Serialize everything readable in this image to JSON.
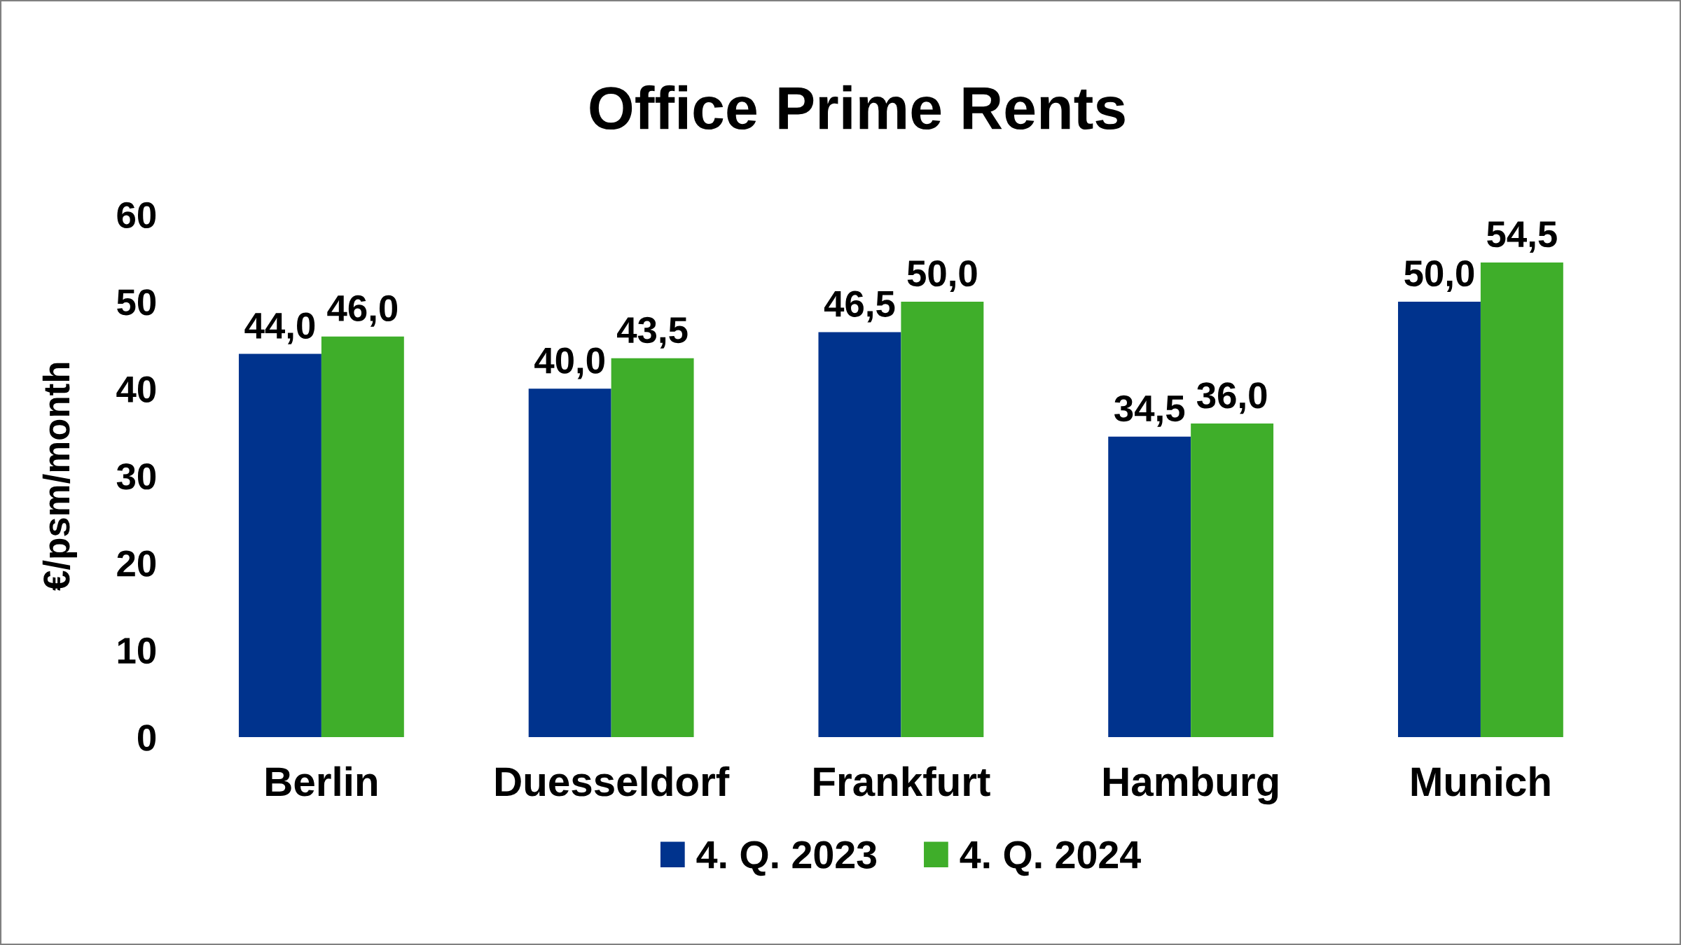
{
  "chart_data": {
    "type": "bar",
    "title": "Office Prime Rents",
    "ylabel": "€/psm/month",
    "categories": [
      "Berlin",
      "Duesseldorf",
      "Frankfurt",
      "Hamburg",
      "Munich"
    ],
    "series": [
      {
        "name": "4. Q. 2023",
        "color": "#00338d",
        "values": [
          44.0,
          40.0,
          46.5,
          34.5,
          50.0
        ],
        "value_labels": [
          "44,0",
          "40,0",
          "46,5",
          "34,5",
          "50,0"
        ]
      },
      {
        "name": "4. Q. 2024",
        "color": "#3fae2a",
        "values": [
          46.0,
          43.5,
          50.0,
          36.0,
          54.5
        ],
        "value_labels": [
          "46,0",
          "43,5",
          "50,0",
          "36,0",
          "54,5"
        ]
      }
    ],
    "ylim": [
      0,
      60
    ],
    "yticks": [
      0,
      10,
      20,
      30,
      40,
      50,
      60
    ],
    "grid": false,
    "legend": "bottom"
  }
}
